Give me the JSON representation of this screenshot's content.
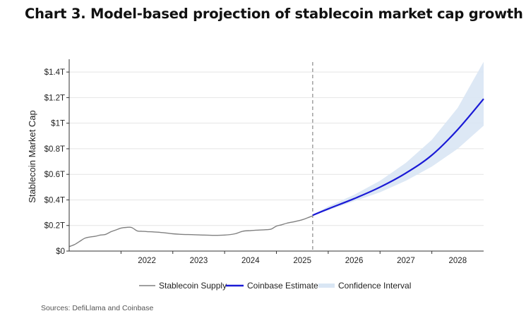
{
  "title": "Chart 3. Model-based projection of stablecoin market cap growth",
  "source": "Sources: DefiLlama and Coinbase",
  "colors": {
    "supply": "#808080",
    "estimate": "#1a1ad6",
    "band": "#d9e6f4",
    "grid": "#e4e4e4",
    "axis": "#333333",
    "divider": "#8a8a8a"
  },
  "chart_data": {
    "type": "line",
    "title": "Chart 3. Model-based projection of stablecoin market cap growth",
    "xlabel": "",
    "ylabel": "Stablecoin Market Cap",
    "xlim": [
      2021.0,
      2029.0
    ],
    "ylim": [
      0,
      1.5
    ],
    "grid": true,
    "legend_position": "bottom",
    "x_ticks": [
      2022,
      2023,
      2024,
      2025,
      2026,
      2027,
      2028
    ],
    "x_tick_labels": [
      "2022",
      "2023",
      "2024",
      "2025",
      "2026",
      "2027",
      "2028"
    ],
    "y_ticks": [
      0,
      0.2,
      0.4,
      0.6,
      0.8,
      1.0,
      1.2,
      1.4
    ],
    "y_tick_labels": [
      "$0",
      "$0.2T",
      "$0.4T",
      "$0.6T",
      "$0.8T",
      "$1T",
      "$1.2T",
      "$1.4T"
    ],
    "divider_x": 2025.7,
    "series": [
      {
        "name": "Stablecoin Supply",
        "kind": "line",
        "x": [
          2021.0,
          2021.1,
          2021.2,
          2021.3,
          2021.4,
          2021.5,
          2021.6,
          2021.7,
          2021.8,
          2021.9,
          2022.0,
          2022.1,
          2022.2,
          2022.3,
          2022.35,
          2022.4,
          2022.5,
          2022.7,
          2022.9,
          2023.0,
          2023.2,
          2023.4,
          2023.6,
          2023.8,
          2024.0,
          2024.2,
          2024.35,
          2024.5,
          2024.6,
          2024.8,
          2024.9,
          2025.0,
          2025.1,
          2025.2,
          2025.35,
          2025.5,
          2025.6,
          2025.7
        ],
        "y": [
          0.035,
          0.05,
          0.075,
          0.1,
          0.11,
          0.115,
          0.125,
          0.13,
          0.15,
          0.165,
          0.18,
          0.185,
          0.185,
          0.16,
          0.155,
          0.155,
          0.152,
          0.148,
          0.14,
          0.135,
          0.13,
          0.128,
          0.125,
          0.123,
          0.125,
          0.135,
          0.155,
          0.16,
          0.163,
          0.167,
          0.172,
          0.195,
          0.205,
          0.218,
          0.23,
          0.245,
          0.26,
          0.275
        ]
      },
      {
        "name": "Coinbase Estimate",
        "kind": "line",
        "x": [
          2025.7,
          2026.0,
          2026.5,
          2027.0,
          2027.5,
          2028.0,
          2028.5,
          2029.0
        ],
        "y": [
          0.28,
          0.33,
          0.41,
          0.5,
          0.61,
          0.75,
          0.95,
          1.19
        ]
      },
      {
        "name": "Confidence Interval",
        "kind": "band",
        "x": [
          2025.7,
          2026.0,
          2026.5,
          2027.0,
          2027.5,
          2028.0,
          2028.5,
          2029.0
        ],
        "lower": [
          0.28,
          0.32,
          0.39,
          0.46,
          0.55,
          0.66,
          0.8,
          0.98
        ],
        "upper": [
          0.28,
          0.35,
          0.44,
          0.55,
          0.69,
          0.87,
          1.12,
          1.48
        ]
      }
    ],
    "legend": [
      "Stablecoin Supply",
      "Coinbase Estimate",
      "Confidence Interval"
    ]
  }
}
